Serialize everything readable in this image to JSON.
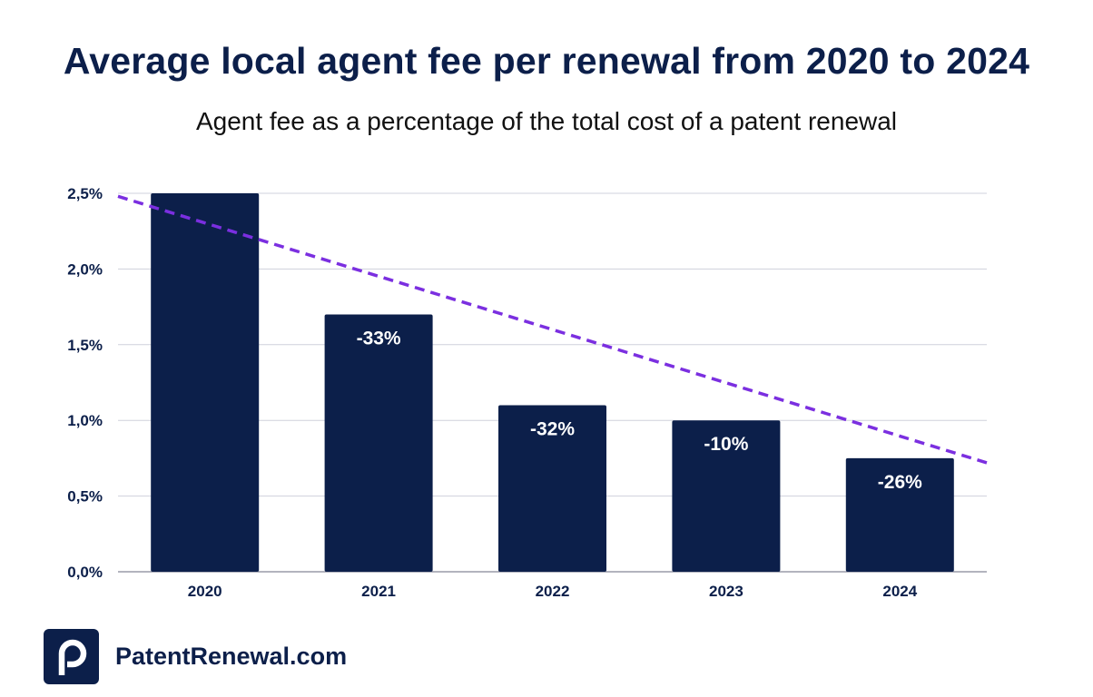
{
  "chart_data": {
    "type": "bar",
    "title": "Average local agent fee per renewal from 2020 to 2024",
    "subtitle": "Agent fee as a percentage of the total cost of a patent renewal",
    "categories": [
      "2020",
      "2021",
      "2022",
      "2023",
      "2024"
    ],
    "values": [
      2.5,
      1.7,
      1.1,
      1.0,
      0.75
    ],
    "bar_labels": [
      "",
      "-33%",
      "-32%",
      "-10%",
      "-26%"
    ],
    "ylim": [
      0,
      2.5
    ],
    "yticks": [
      0,
      0.5,
      1.0,
      1.5,
      2.0,
      2.5
    ],
    "ytick_labels": [
      "0,0%",
      "0,5%",
      "1,0%",
      "1,5%",
      "2,0%",
      "2,5%"
    ],
    "xlabel": "",
    "ylabel": "",
    "grid": true,
    "trendline": {
      "start": 2.48,
      "end": 0.72,
      "style": "dashed"
    },
    "colors": {
      "bar": "#0c1f4a",
      "trend": "#7b2fe0",
      "grid": "#cfd1dc"
    }
  },
  "brand": {
    "name": "PatentRenewal.com",
    "logo_letter": "p"
  }
}
